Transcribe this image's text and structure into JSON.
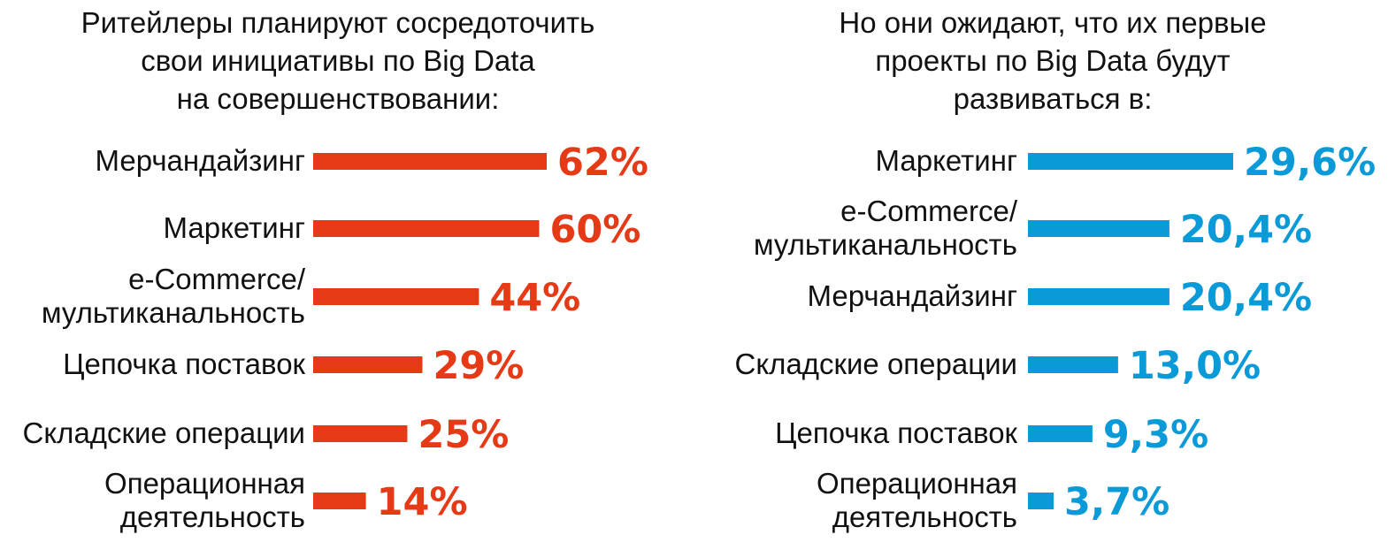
{
  "chart_data": [
    {
      "type": "bar",
      "title": [
        "Ритейлеры планируют сосредоточить",
        "свои инициативы по Big Data",
        "на совершенствовании:"
      ],
      "categories": [
        [
          "Мерчандайзинг"
        ],
        [
          "Маркетинг"
        ],
        [
          "e-Commerce/",
          "мультиканальность"
        ],
        [
          "Цепочка поставок"
        ],
        [
          "Складские операции"
        ],
        [
          "Операционная",
          "деятельность"
        ]
      ],
      "values": [
        62,
        60,
        44,
        29,
        25,
        14
      ],
      "value_labels": [
        "62%",
        "60%",
        "44%",
        "29%",
        "25%",
        "14%"
      ],
      "color": "#e63a16",
      "orientation": "horizontal"
    },
    {
      "type": "bar",
      "title": [
        "Но они ожидают, что их первые",
        "проекты по Big Data будут",
        "развиваться в:"
      ],
      "categories": [
        [
          "Маркетинг"
        ],
        [
          "e-Commerce/",
          "мультиканальность"
        ],
        [
          "Мерчандайзинг"
        ],
        [
          "Складские операции"
        ],
        [
          "Цепочка поставок"
        ],
        [
          "Операционная",
          "деятельность"
        ]
      ],
      "values": [
        29.6,
        20.4,
        20.4,
        13.0,
        9.3,
        3.7
      ],
      "value_labels": [
        "29,6%",
        "20,4%",
        "20,4%",
        "13,0%",
        "9,3%",
        "3,7%"
      ],
      "color": "#0a9ad8",
      "orientation": "horizontal"
    }
  ]
}
